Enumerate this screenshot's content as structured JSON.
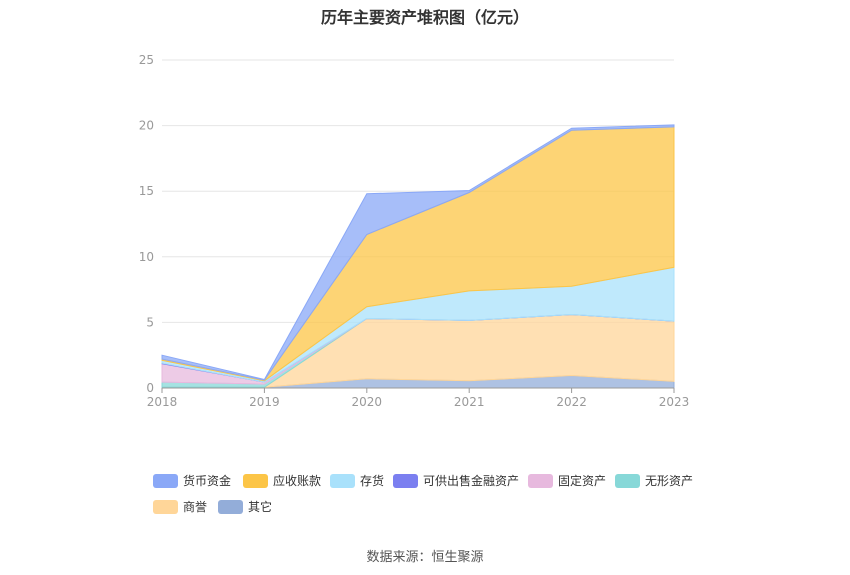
{
  "title": "历年主要资产堆积图（亿元）",
  "source": "数据来源：恒生聚源",
  "chart_data": {
    "type": "area",
    "stacked": true,
    "x": [
      "2018",
      "2019",
      "2020",
      "2021",
      "2022",
      "2023"
    ],
    "ylim": [
      0,
      25
    ],
    "yticks": [
      0,
      5,
      10,
      15,
      20,
      25
    ],
    "grid": true,
    "legend_position": "bottom",
    "series": [
      {
        "name": "其它",
        "color": "#93add9",
        "values": [
          0.05,
          0.05,
          0.7,
          0.55,
          0.95,
          0.5
        ]
      },
      {
        "name": "商誉",
        "color": "#ffd699",
        "values": [
          0.0,
          0.0,
          4.6,
          4.6,
          4.65,
          4.6
        ]
      },
      {
        "name": "无形资产",
        "color": "#87d8d8",
        "values": [
          0.4,
          0.25,
          0.0,
          0.0,
          0.0,
          0.0
        ]
      },
      {
        "name": "固定资产",
        "color": "#e7b9de",
        "values": [
          1.4,
          0.15,
          0.0,
          0.0,
          0.0,
          0.0
        ]
      },
      {
        "name": "可供出售金融资产",
        "color": "#7b7ff0",
        "values": [
          0.05,
          0.0,
          0.0,
          0.0,
          0.0,
          0.0
        ]
      },
      {
        "name": "存货",
        "color": "#a9e1fb",
        "values": [
          0.2,
          0.1,
          0.9,
          2.25,
          2.15,
          4.1
        ]
      },
      {
        "name": "应收账款",
        "color": "#fcc547",
        "values": [
          0.1,
          0.05,
          5.5,
          7.5,
          11.9,
          10.7
        ]
      },
      {
        "name": "货币资金",
        "color": "#8aa8f7",
        "values": [
          0.3,
          0.05,
          3.1,
          0.15,
          0.15,
          0.15
        ]
      }
    ]
  },
  "legend": [
    {
      "name": "货币资金",
      "color": "#8aa8f7"
    },
    {
      "name": "应收账款",
      "color": "#fcc547"
    },
    {
      "name": "存货",
      "color": "#a9e1fb"
    },
    {
      "name": "可供出售金融资产",
      "color": "#7b7ff0"
    },
    {
      "name": "固定资产",
      "color": "#e7b9de"
    },
    {
      "name": "无形资产",
      "color": "#87d8d8"
    },
    {
      "name": "商誉",
      "color": "#ffd699"
    },
    {
      "name": "其它",
      "color": "#93add9"
    }
  ]
}
